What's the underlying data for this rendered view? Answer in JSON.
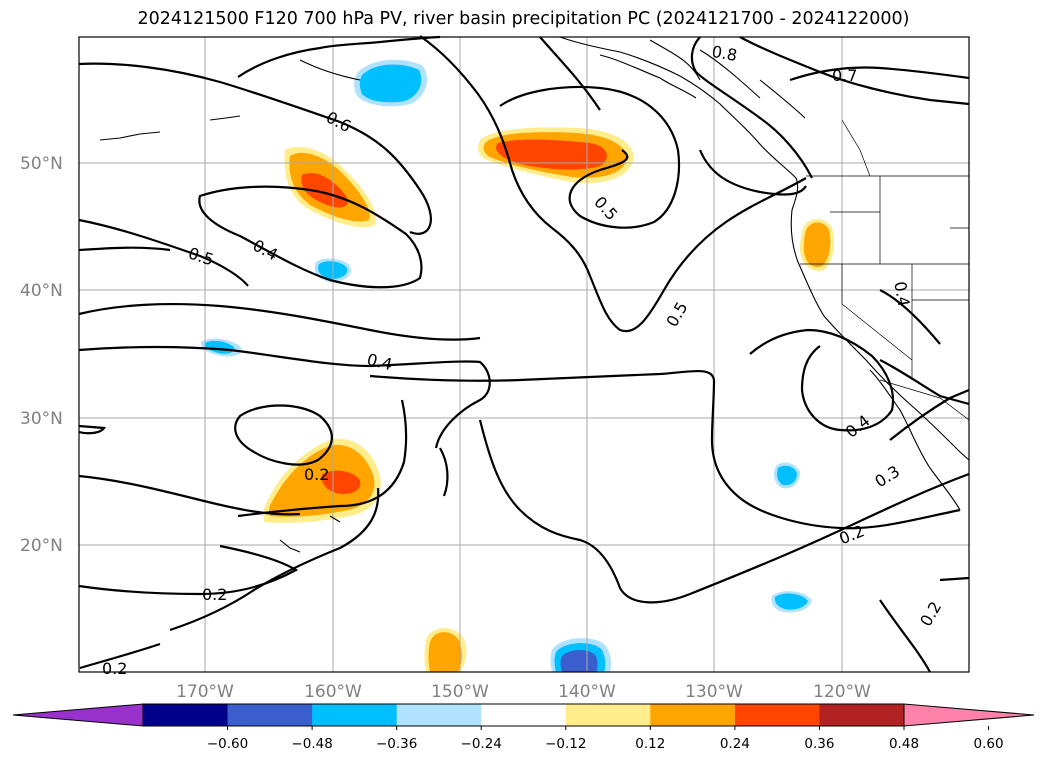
{
  "title": "2024121500 F120 700 hPa PV, river basin precipitation PC (2024121700 - 2024122000)",
  "map": {
    "lat_labels": [
      "50°N",
      "40°N",
      "30°N",
      "20°N"
    ],
    "lon_labels": [
      "170°W",
      "160°W",
      "150°W",
      "140°W",
      "130°W",
      "120°W"
    ],
    "contour_levels": [
      "0.8",
      "0.7",
      "0.6",
      "0.5",
      "0.4",
      "0.5",
      "0.4",
      "0.5",
      "0.4",
      "0.4",
      "0.3",
      "0.2",
      "0.2",
      "0.2",
      "0.2",
      "0.2"
    ]
  },
  "colorbar": {
    "ticks": [
      "−0.60",
      "−0.48",
      "−0.36",
      "−0.24",
      "−0.12",
      "0.12",
      "0.24",
      "0.36",
      "0.48",
      "0.60"
    ],
    "colors": [
      "#9932cc",
      "#00008b",
      "#3a5fcd",
      "#00bfff",
      "#b0e2ff",
      "#ffffff",
      "#ffec8b",
      "#ffa500",
      "#ff4500",
      "#b22222",
      "#ff82ab"
    ]
  }
}
